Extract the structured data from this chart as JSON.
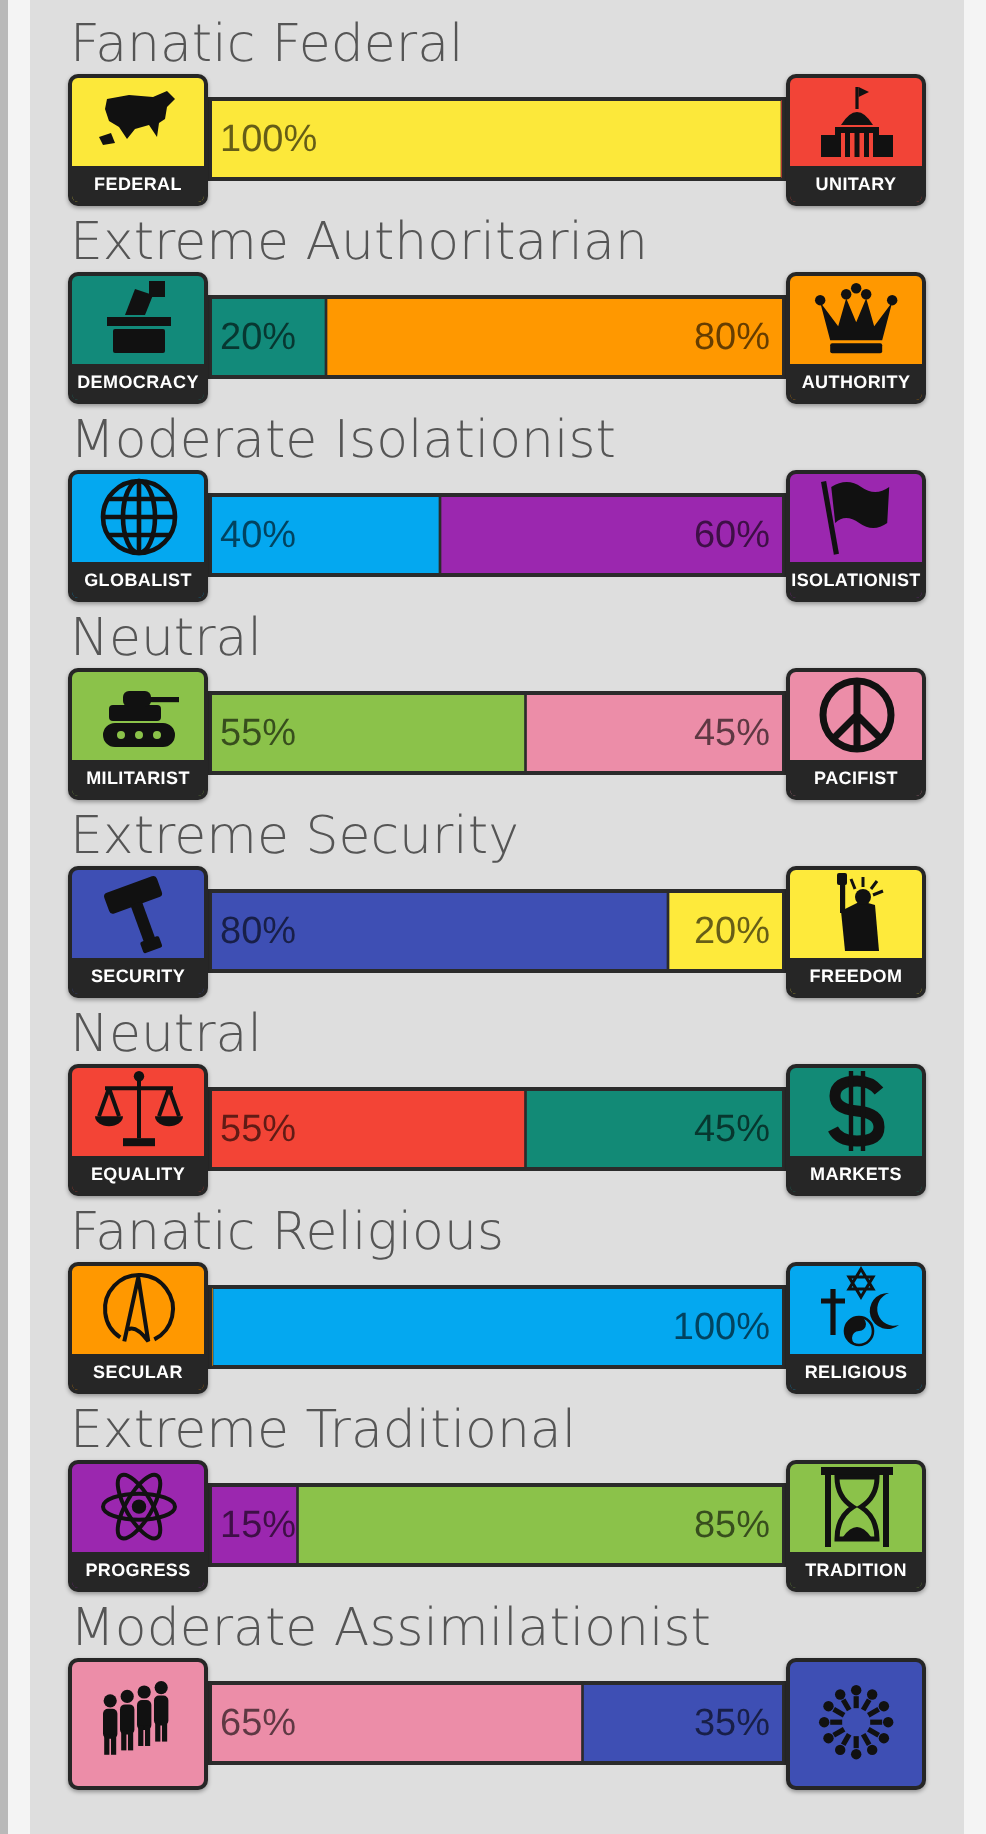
{
  "chart_data": {
    "type": "bar",
    "orientation": "horizontal",
    "stacked": true,
    "tick_labels": "y",
    "xlim": [
      0,
      100
    ],
    "legend": "right",
    "categories": [
      "Fanatic Federal",
      "Extreme Authoritarian",
      "Moderate Isolationist",
      "Neutral",
      "Extreme Security",
      "Neutral",
      "Fanatic Religious",
      "Extreme Traditional",
      "Moderate Assimilationist"
    ],
    "series": [
      {
        "name": "FEDERAL",
        "color": "#fce83a",
        "values": [
          100,
          null,
          null,
          null,
          null,
          null,
          null,
          null,
          null
        ],
        "value_labels": [
          "100%",
          null,
          null,
          null,
          null,
          null,
          null,
          null,
          null
        ]
      },
      {
        "name": "UNITARY",
        "color": "#f24437",
        "values": [
          0,
          null,
          null,
          null,
          null,
          null,
          null,
          null,
          null
        ],
        "value_labels": [
          null,
          null,
          null,
          null,
          null,
          null,
          null,
          null,
          null
        ]
      },
      {
        "name": "DEMOCRACY",
        "color": "#128a7a",
        "values": [
          null,
          20,
          null,
          null,
          null,
          null,
          null,
          null,
          null
        ],
        "value_labels": [
          null,
          "20%",
          null,
          null,
          null,
          null,
          null,
          null,
          null
        ]
      },
      {
        "name": "AUTHORITY",
        "color": "#ff9800",
        "values": [
          null,
          80,
          null,
          null,
          null,
          null,
          null,
          null,
          null
        ],
        "value_labels": [
          null,
          "80%",
          null,
          null,
          null,
          null,
          null,
          null,
          null
        ]
      },
      {
        "name": "GLOBALIST",
        "color": "#04a8f0",
        "values": [
          null,
          null,
          40,
          null,
          null,
          null,
          null,
          null,
          null
        ],
        "value_labels": [
          null,
          null,
          "40%",
          null,
          null,
          null,
          null,
          null,
          null
        ]
      },
      {
        "name": "ISOLATIONIST",
        "color": "#9b27af",
        "values": [
          null,
          null,
          60,
          null,
          null,
          null,
          null,
          null,
          null
        ],
        "value_labels": [
          null,
          null,
          "60%",
          null,
          null,
          null,
          null,
          null,
          null
        ]
      },
      {
        "name": "MILITARIST",
        "color": "#8bc24a",
        "values": [
          null,
          null,
          null,
          55,
          null,
          null,
          null,
          null,
          null
        ],
        "value_labels": [
          null,
          null,
          null,
          "55%",
          null,
          null,
          null,
          null,
          null
        ]
      },
      {
        "name": "PACIFIST",
        "color": "#ec8da8",
        "values": [
          null,
          null,
          null,
          45,
          null,
          null,
          null,
          null,
          null
        ],
        "value_labels": [
          null,
          null,
          null,
          "45%",
          null,
          null,
          null,
          null,
          null
        ]
      },
      {
        "name": "SECURITY",
        "color": "#3e4fb4",
        "values": [
          null,
          null,
          null,
          null,
          80,
          null,
          null,
          null,
          null
        ],
        "value_labels": [
          null,
          null,
          null,
          null,
          "80%",
          null,
          null,
          null,
          null
        ]
      },
      {
        "name": "FREEDOM",
        "color": "#feea3b",
        "values": [
          null,
          null,
          null,
          null,
          20,
          null,
          null,
          null,
          null
        ],
        "value_labels": [
          null,
          null,
          null,
          null,
          "20%",
          null,
          null,
          null,
          null
        ]
      },
      {
        "name": "EQUALITY",
        "color": "#f34436",
        "values": [
          null,
          null,
          null,
          null,
          null,
          55,
          null,
          null,
          null
        ],
        "value_labels": [
          null,
          null,
          null,
          null,
          null,
          "55%",
          null,
          null,
          null
        ]
      },
      {
        "name": "MARKETS",
        "color": "#128a76",
        "values": [
          null,
          null,
          null,
          null,
          null,
          45,
          null,
          null,
          null
        ],
        "value_labels": [
          null,
          null,
          null,
          null,
          null,
          "45%",
          null,
          null,
          null
        ]
      },
      {
        "name": "SECULAR",
        "color": "#ff9800",
        "values": [
          null,
          null,
          null,
          null,
          null,
          null,
          0,
          null,
          null
        ],
        "value_labels": [
          null,
          null,
          null,
          null,
          null,
          null,
          null,
          null,
          null
        ]
      },
      {
        "name": "RELIGIOUS",
        "color": "#04a8f0",
        "values": [
          null,
          null,
          null,
          null,
          null,
          null,
          100,
          null,
          null
        ],
        "value_labels": [
          null,
          null,
          null,
          null,
          null,
          null,
          "100%",
          null,
          null
        ]
      },
      {
        "name": "PROGRESS",
        "color": "#9b27af",
        "values": [
          null,
          null,
          null,
          null,
          null,
          null,
          null,
          15,
          null
        ],
        "value_labels": [
          null,
          null,
          null,
          null,
          null,
          null,
          null,
          "15%",
          null
        ]
      },
      {
        "name": "TRADITION",
        "color": "#8bc24a",
        "values": [
          null,
          null,
          null,
          null,
          null,
          null,
          null,
          85,
          null
        ],
        "value_labels": [
          null,
          null,
          null,
          null,
          null,
          null,
          null,
          "85%",
          null
        ]
      },
      {
        "color": "#ec8da8",
        "values": [
          null,
          null,
          null,
          null,
          null,
          null,
          null,
          null,
          65
        ],
        "value_labels": [
          null,
          null,
          null,
          null,
          null,
          null,
          null,
          null,
          "65%"
        ]
      },
      {
        "color": "#3e4fb4",
        "values": [
          null,
          null,
          null,
          null,
          null,
          null,
          null,
          null,
          35
        ],
        "value_labels": [
          null,
          null,
          null,
          null,
          null,
          null,
          null,
          null,
          "35%"
        ]
      }
    ]
  }
}
